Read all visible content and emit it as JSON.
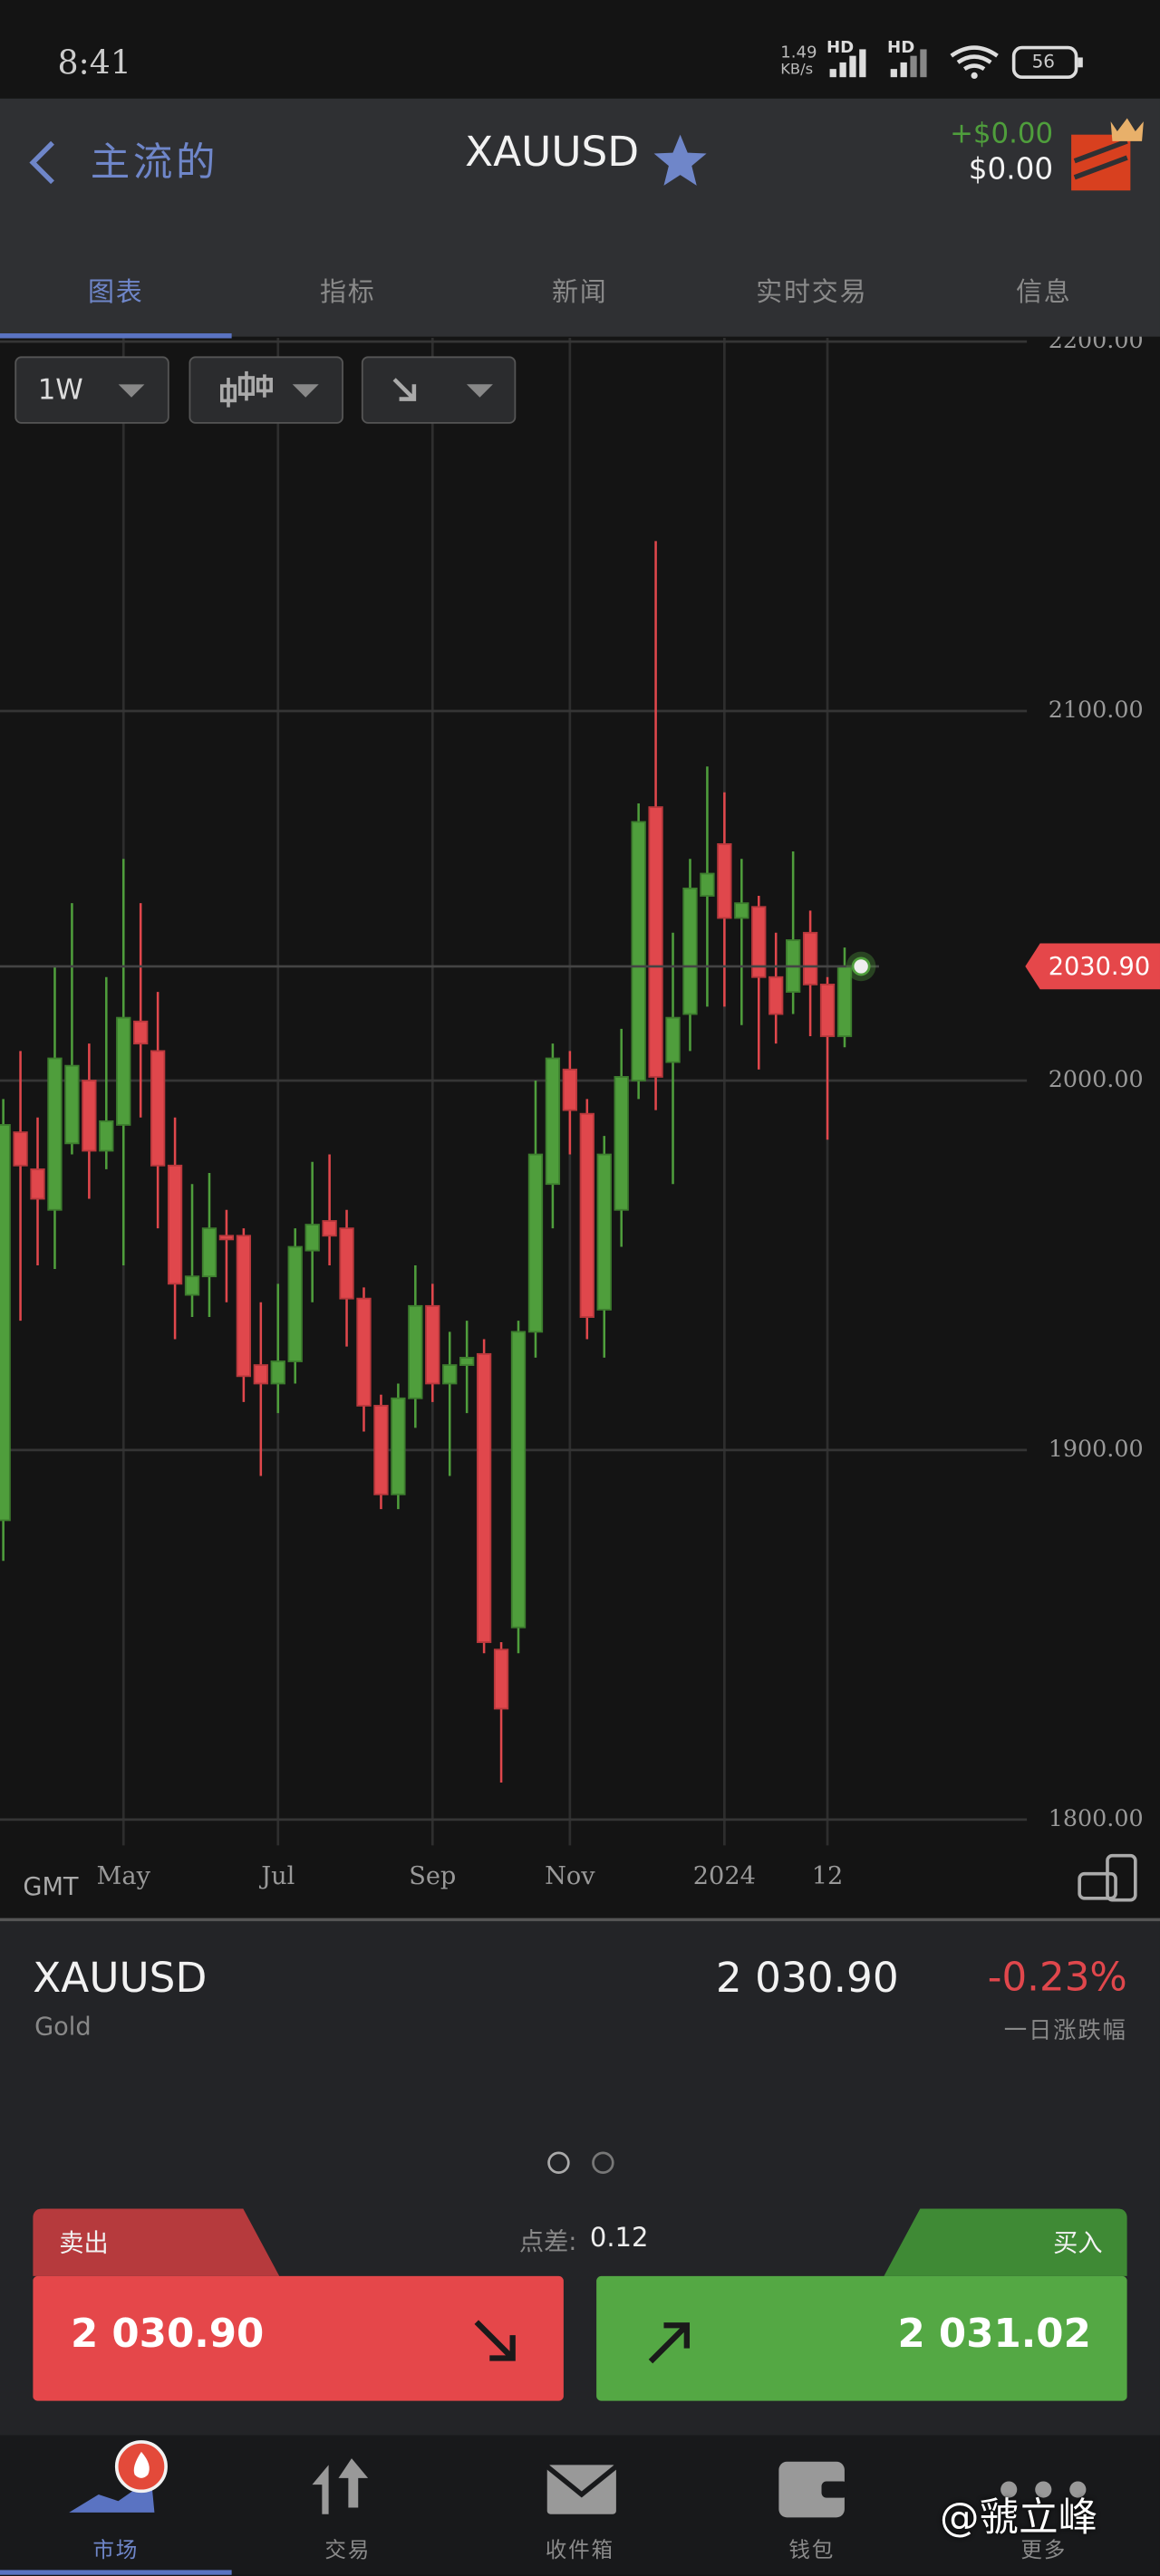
{
  "status_bar": {
    "time": "8:41",
    "net_speed": "1.49",
    "net_unit": "KB/s",
    "hd_1": "HD",
    "hd_2": "HD",
    "battery": "56"
  },
  "header": {
    "back_label": "主流的",
    "symbol": "XAUUSD",
    "pnl": "+$0.00",
    "balance": "$0.00"
  },
  "tabs": [
    "图表",
    "指标",
    "新闻",
    "实时交易",
    "信息"
  ],
  "toolbar": {
    "timeframe": "1W"
  },
  "chart_data": {
    "type": "candlestick",
    "categories": [
      null,
      null,
      null,
      null,
      null,
      null,
      null,
      "May",
      null,
      null,
      null,
      null,
      null,
      null,
      null,
      null,
      "Jul",
      null,
      null,
      null,
      null,
      null,
      null,
      null,
      null,
      "Sep",
      null,
      null,
      null,
      null,
      null,
      null,
      null,
      "Nov",
      null,
      null,
      null,
      null,
      null,
      null,
      null,
      null,
      "2024",
      null,
      null,
      null,
      null,
      null,
      "12",
      null
    ],
    "open": [
      1881,
      1986,
      1976,
      1965,
      1983,
      2000,
      1981,
      1988,
      2016,
      2008,
      1977,
      1942,
      1947,
      1958,
      1958,
      1923,
      1918,
      1924,
      1954,
      1962,
      1960,
      1941,
      1912,
      1888,
      1914,
      1939,
      1918,
      1923,
      1926,
      1846,
      1852,
      1932,
      1972,
      2003,
      1991,
      1938,
      1965,
      2000,
      2074,
      2005,
      2018,
      2050,
      2064,
      2044,
      2047,
      2028,
      2024,
      2040,
      2026,
      2012
    ],
    "high": [
      1995,
      2008,
      1990,
      2031,
      2048,
      2010,
      2028,
      2060,
      2048,
      2024,
      1990,
      1972,
      1975,
      1965,
      1960,
      1940,
      1945,
      1960,
      1978,
      1980,
      1965,
      1944,
      1915,
      1918,
      1950,
      1945,
      1932,
      1935,
      1930,
      1848,
      1935,
      2000,
      2010,
      2008,
      1995,
      1985,
      2014,
      2075,
      2146,
      2040,
      2060,
      2085,
      2078,
      2060,
      2050,
      2040,
      2062,
      2046,
      2028,
      2036
    ],
    "low": [
      1870,
      1935,
      1950,
      1949,
      1980,
      1968,
      1976,
      1950,
      1990,
      1960,
      1930,
      1936,
      1936,
      1940,
      1913,
      1893,
      1910,
      1918,
      1940,
      1950,
      1928,
      1905,
      1884,
      1884,
      1906,
      1913,
      1893,
      1910,
      1845,
      1810,
      1845,
      1925,
      1960,
      1980,
      1930,
      1925,
      1955,
      1995,
      1992,
      1972,
      2008,
      2020,
      2020,
      2015,
      2003,
      2010,
      2018,
      2012,
      1984,
      2009
    ],
    "close": [
      1988,
      1977,
      1968,
      2006,
      2004,
      1981,
      1989,
      2017,
      2010,
      1977,
      1945,
      1947,
      1960,
      1957,
      1920,
      1918,
      1924,
      1955,
      1961,
      1958,
      1941,
      1912,
      1888,
      1914,
      1939,
      1918,
      1923,
      1925,
      1848,
      1830,
      1932,
      1980,
      2006,
      1992,
      1936,
      1980,
      2001,
      2070,
      2001,
      2017,
      2052,
      2056,
      2044,
      2048,
      2028,
      2018,
      2038,
      2026,
      2012,
      2030.9
    ],
    "up_color": "#4f9e3c",
    "down_color": "#e0474c",
    "ylim": [
      1793,
      2201
    ],
    "yticks": [
      {
        "value": 1800,
        "label": "1800.00"
      },
      {
        "value": 1900,
        "label": "1900.00"
      },
      {
        "value": 2000,
        "label": "2000.00"
      },
      {
        "value": 2100,
        "label": "2100.00"
      },
      {
        "value": 2200,
        "label": "2200.00"
      }
    ],
    "last_price": {
      "value": 2030.9,
      "label": "2030.90"
    },
    "grid": true,
    "timezone": "GMT"
  },
  "quote": {
    "symbol": "XAUUSD",
    "name": "Gold",
    "price": "2 030.90",
    "change": "-0.23%",
    "change_label": "一日涨跌幅"
  },
  "trade": {
    "sell_label": "卖出",
    "sell_price": "2 030.90",
    "spread_label": "点差:",
    "spread": "0.12",
    "buy_label": "买入",
    "buy_price": "2 031.02"
  },
  "nav": [
    "市场",
    "交易",
    "收件箱",
    "钱包",
    "更多"
  ],
  "watermark": "@虢立峰"
}
